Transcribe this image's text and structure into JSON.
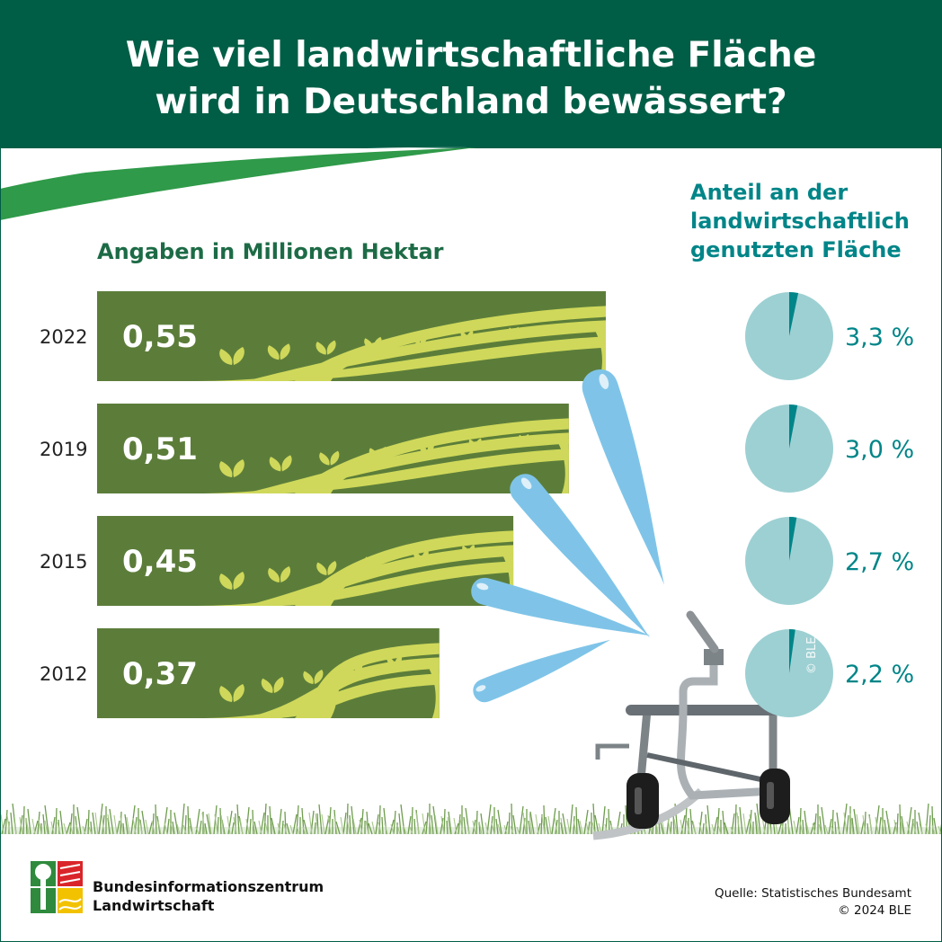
{
  "title_lines": [
    "Wie viel landwirtschaftliche Fläche",
    "wird in Deutschland bewässert?"
  ],
  "subtitle": "Angaben in Millionen Hektar",
  "share_title_lines": [
    "Anteil an der",
    "landwirtschaftlich",
    "genutzten Fläche"
  ],
  "watermark": "© BLE",
  "footer": {
    "org_lines": [
      "Bundesinformationszentrum",
      "Landwirtschaft"
    ],
    "source": "Quelle: Statistisches Bundesamt",
    "copyright": "© 2024 BLE"
  },
  "colors": {
    "header": "#005e46",
    "bar": "#5c7d3a",
    "field_light": "#cfd85a",
    "pie_base": "#9dd0d3",
    "pie_slice": "#008588",
    "water": "#7fc4e8"
  },
  "chart_data": [
    {
      "type": "bar",
      "orientation": "horizontal",
      "categories": [
        "2022",
        "2019",
        "2015",
        "2012"
      ],
      "values": [
        0.55,
        0.51,
        0.45,
        0.37
      ],
      "labels": [
        "0,55",
        "0,51",
        "0,45",
        "0,37"
      ],
      "unit": "Millionen Hektar",
      "title": "Angaben in Millionen Hektar"
    },
    {
      "type": "pie",
      "categories": [
        "2022",
        "2019",
        "2015",
        "2012"
      ],
      "values": [
        3.3,
        3.0,
        2.7,
        2.2
      ],
      "labels": [
        "3,3 %",
        "3,0 %",
        "2,7 %",
        "2,2 %"
      ],
      "unit": "%",
      "title": "Anteil an der landwirtschaftlich genutzten Fläche"
    }
  ]
}
